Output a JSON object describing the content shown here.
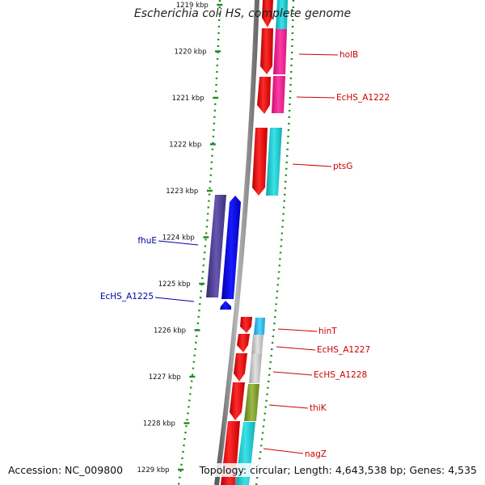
{
  "title": "Escherichia coli HS, complete genome",
  "footer": {
    "accession": "Accession: NC_009800",
    "summary": "Topology: circular; Length: 4,643,538 bp; Genes: 4,535"
  },
  "colors": {
    "backbone": "#8a8a8a",
    "tick_dots": "#1e8a1e",
    "forward_label": "#cc0000",
    "reverse_label": "#0000aa"
  },
  "ticks": [
    {
      "label": "1219 kbp"
    },
    {
      "label": "1220 kbp"
    },
    {
      "label": "1221 kbp"
    },
    {
      "label": "1222 kbp"
    },
    {
      "label": "1223 kbp"
    },
    {
      "label": "1224 kbp"
    },
    {
      "label": "1225 kbp"
    },
    {
      "label": "1226 kbp"
    },
    {
      "label": "1227 kbp"
    },
    {
      "label": "1228 kbp"
    },
    {
      "label": "1229 kbp"
    }
  ],
  "forward_genes": [
    {
      "name": "holB",
      "color": "#ee1d8f"
    },
    {
      "name": "EcHS_A1222",
      "color": "#ee1d8f"
    },
    {
      "name": "ptsG",
      "color": "#17c2c8"
    },
    {
      "name": "hinT",
      "color": "#22b8e8"
    },
    {
      "name": "EcHS_A1227",
      "color": "#bdbdbd"
    },
    {
      "name": "EcHS_A1228",
      "color": "#bdbdbd"
    },
    {
      "name": "thiK",
      "color": "#7c9a2d"
    },
    {
      "name": "nagZ",
      "color": "#17c2c8"
    }
  ],
  "reverse_genes": [
    {
      "name": "fhuE",
      "color": "#4b3f8c"
    },
    {
      "name": "EcHS_A1225",
      "color": "#4b3f8c"
    }
  ]
}
